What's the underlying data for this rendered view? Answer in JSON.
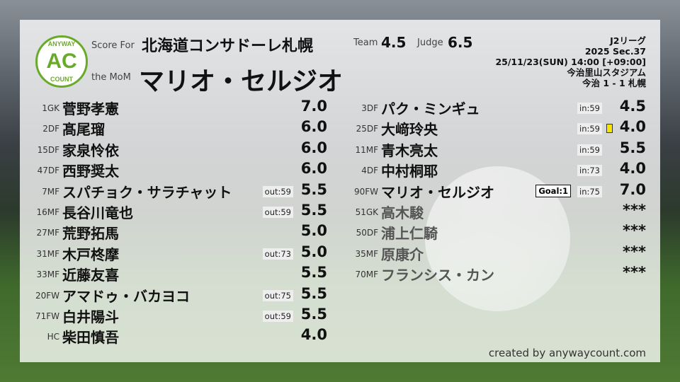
{
  "header": {
    "score_for_label": "Score For",
    "team": "北海道コンサドーレ札幌",
    "mom_label": "the MoM",
    "mom": "マリオ・セルジオ",
    "team_label": "Team",
    "team_score": "4.5",
    "judge_label": "Judge",
    "judge_score": "6.5"
  },
  "logo": {
    "top": "ANYWAY",
    "mid": "AC",
    "bottom": "COUNT",
    "color": "#6aaa2a"
  },
  "match": {
    "league": "J2リーグ",
    "season": "2025 Sec.37",
    "datetime": "25/11/23(SUN) 14:00 [+09:00]",
    "venue": "今治里山スタジアム",
    "result": "今治 1 - 1 札幌"
  },
  "left": [
    {
      "num": "1GK",
      "name": "菅野孝憲",
      "rating": "7.0"
    },
    {
      "num": "2DF",
      "name": "髙尾瑠",
      "rating": "6.0"
    },
    {
      "num": "15DF",
      "name": "家泉怜依",
      "rating": "6.0"
    },
    {
      "num": "47DF",
      "name": "西野奨太",
      "rating": "6.0"
    },
    {
      "num": "7MF",
      "name": "スパチョク・サラチャット",
      "rating": "5.5",
      "sub": "out:59"
    },
    {
      "num": "16MF",
      "name": "長谷川竜也",
      "rating": "5.5",
      "sub": "out:59"
    },
    {
      "num": "27MF",
      "name": "荒野拓馬",
      "rating": "5.0"
    },
    {
      "num": "31MF",
      "name": "木戸柊摩",
      "rating": "5.0",
      "sub": "out:73"
    },
    {
      "num": "33MF",
      "name": "近藤友喜",
      "rating": "5.5"
    },
    {
      "num": "20FW",
      "name": "アマドゥ・バカヨコ",
      "rating": "5.5",
      "sub": "out:75"
    },
    {
      "num": "71FW",
      "name": "白井陽斗",
      "rating": "5.5",
      "sub": "out:59"
    },
    {
      "num": "HC",
      "name": "柴田慎吾",
      "rating": "4.0"
    }
  ],
  "right": [
    {
      "num": "3DF",
      "name": "パク・ミンギュ",
      "rating": "4.5",
      "sub": "in:59"
    },
    {
      "num": "25DF",
      "name": "大﨑玲央",
      "rating": "4.0",
      "sub": "in:59",
      "yellow": true
    },
    {
      "num": "11MF",
      "name": "青木亮太",
      "rating": "5.5",
      "sub": "in:59"
    },
    {
      "num": "4DF",
      "name": "中村桐耶",
      "rating": "4.0",
      "sub": "in:73"
    },
    {
      "num": "90FW",
      "name": "マリオ・セルジオ",
      "rating": "7.0",
      "sub": "in:75",
      "goal": "Goal:1"
    },
    {
      "num": "51GK",
      "name": "高木駿",
      "rating": "***",
      "unused": true
    },
    {
      "num": "50DF",
      "name": "浦上仁騎",
      "rating": "***",
      "unused": true
    },
    {
      "num": "35MF",
      "name": "原康介",
      "rating": "***",
      "unused": true
    },
    {
      "num": "70MF",
      "name": "フランシス・カン",
      "rating": "***",
      "unused": true
    }
  ],
  "credit": "created by anywaycount.com"
}
